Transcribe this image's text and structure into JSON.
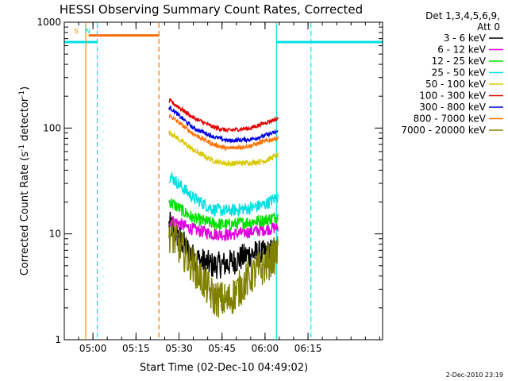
{
  "chart_data": {
    "type": "line",
    "title": "HESSI Observing Summary Count Rates, Corrected",
    "xlabel": "Start Time (02-Dec-10 04:49:02)",
    "ylabel": "Corrected Count Rate (s",
    "ylabel_sup1": "-1",
    "ylabel_mid": " detector",
    "ylabel_sup2": "-1",
    "ylabel_end": ")",
    "yscale": "log",
    "ylim": [
      1,
      1000
    ],
    "xlim_min": [
      0,
      111
    ],
    "x_ticks": [
      {
        "min": 10,
        "label": "05:00"
      },
      {
        "min": 25,
        "label": "05:15"
      },
      {
        "min": 40,
        "label": "05:30"
      },
      {
        "min": 55,
        "label": "05:45"
      },
      {
        "min": 70,
        "label": "06:00"
      },
      {
        "min": 85,
        "label": "06:15"
      }
    ],
    "y_ticks": [
      {
        "v": 1,
        "label": "1"
      },
      {
        "v": 10,
        "label": "10"
      },
      {
        "v": 100,
        "label": "100"
      },
      {
        "v": 1000,
        "label": "1000"
      }
    ],
    "legend": {
      "header1": "Det 1,3,4,5,6,9,",
      "header2": "Att 0",
      "placement": "right"
    },
    "series": [
      {
        "name": "3 - 6 keV",
        "color": "#000000",
        "noise": 0.13,
        "profile": [
          [
            37,
            12
          ],
          [
            45,
            6
          ],
          [
            52,
            5
          ],
          [
            57,
            5.2
          ],
          [
            65,
            6.5
          ],
          [
            70,
            6.5
          ],
          [
            74,
            7
          ]
        ]
      },
      {
        "name": "6 - 12 keV",
        "color": "#e000e0",
        "noise": 0.06,
        "profile": [
          [
            37,
            13.5
          ],
          [
            45,
            11
          ],
          [
            52,
            10
          ],
          [
            57,
            9.8
          ],
          [
            65,
            10.5
          ],
          [
            70,
            11
          ],
          [
            74,
            11.5
          ]
        ]
      },
      {
        "name": "12 - 25 keV",
        "color": "#00e000",
        "noise": 0.06,
        "profile": [
          [
            37,
            20
          ],
          [
            45,
            14
          ],
          [
            52,
            12.5
          ],
          [
            57,
            12.2
          ],
          [
            65,
            13
          ],
          [
            70,
            13.5
          ],
          [
            74,
            14.5
          ]
        ]
      },
      {
        "name": "25 - 50 keV",
        "color": "#00e0e0",
        "noise": 0.06,
        "profile": [
          [
            37,
            35
          ],
          [
            45,
            22
          ],
          [
            52,
            17
          ],
          [
            57,
            16.5
          ],
          [
            65,
            17.5
          ],
          [
            70,
            19
          ],
          [
            74,
            22
          ]
        ]
      },
      {
        "name": "50 - 100 keV",
        "color": "#d8c800",
        "noise": 0.025,
        "profile": [
          [
            37,
            90
          ],
          [
            45,
            62
          ],
          [
            52,
            49
          ],
          [
            57,
            46
          ],
          [
            65,
            47
          ],
          [
            70,
            49
          ],
          [
            74,
            55
          ]
        ]
      },
      {
        "name": "100 - 300 keV",
        "color": "#e00000",
        "noise": 0.02,
        "profile": [
          [
            37,
            180
          ],
          [
            45,
            125
          ],
          [
            52,
            102
          ],
          [
            57,
            95
          ],
          [
            65,
            100
          ],
          [
            70,
            112
          ],
          [
            74,
            122
          ]
        ]
      },
      {
        "name": "300 - 800 keV",
        "color": "#0000e0",
        "noise": 0.02,
        "profile": [
          [
            37,
            155
          ],
          [
            45,
            100
          ],
          [
            52,
            83
          ],
          [
            57,
            76
          ],
          [
            65,
            78
          ],
          [
            70,
            85
          ],
          [
            74,
            92
          ]
        ]
      },
      {
        "name": "800 - 7000 keV",
        "color": "#ff7000",
        "noise": 0.02,
        "profile": [
          [
            37,
            130
          ],
          [
            45,
            88
          ],
          [
            52,
            70
          ],
          [
            57,
            64
          ],
          [
            65,
            68
          ],
          [
            70,
            75
          ],
          [
            74,
            80
          ]
        ]
      },
      {
        "name": "7000 - 20000 keV",
        "color": "#808000",
        "noise": 0.18,
        "profile": [
          [
            37,
            10
          ],
          [
            45,
            5
          ],
          [
            52,
            2.5
          ],
          [
            57,
            2.3
          ],
          [
            65,
            4
          ],
          [
            70,
            5
          ],
          [
            74,
            6.5
          ]
        ]
      }
    ],
    "data_x_range": [
      36.5,
      74.5
    ],
    "markers": [
      {
        "min": 7.5,
        "color": "#ff9000",
        "dash": false,
        "label": "S"
      },
      {
        "min": 11.5,
        "color": "#00e0e0",
        "dash": true,
        "label": "N"
      },
      {
        "min": 33.0,
        "color": "#ff7000",
        "dash": true,
        "label": ""
      },
      {
        "min": 74.0,
        "color": "#00e0e0",
        "dash": false,
        "label": ""
      },
      {
        "min": 86.0,
        "color": "#00e0e0",
        "dash": true,
        "label": ""
      }
    ],
    "bars": [
      {
        "from": 0,
        "to": 11.5,
        "value": 650,
        "color": "#00e0e0"
      },
      {
        "from": 8.5,
        "to": 33.0,
        "value": 750,
        "color": "#ff7000"
      },
      {
        "from": 74.0,
        "to": 111,
        "value": 650,
        "color": "#00e0e0"
      }
    ],
    "footer": "2-Dec-2010 23:19"
  }
}
